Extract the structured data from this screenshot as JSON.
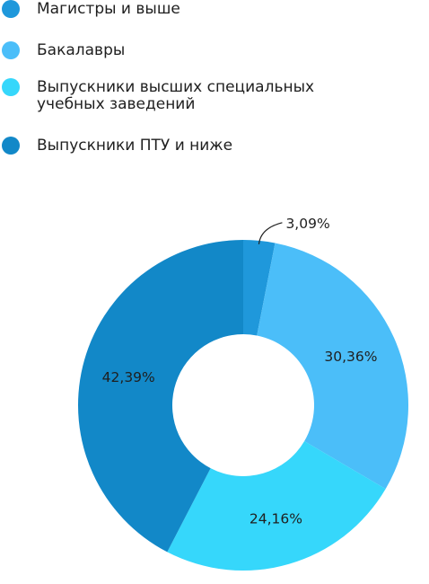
{
  "chart_data": {
    "type": "pie",
    "donut": true,
    "legend_position": "top-left",
    "categories": [
      "Магистры и выше",
      "Бакалавры",
      "Выпускники высших специальных учебных заведений",
      "Выпускники ПТУ и ниже"
    ],
    "legend_lines": [
      [
        "Магистры и выше"
      ],
      [
        "Бакалавры"
      ],
      [
        "Выпускники высших специальных",
        "учебных заведений"
      ],
      [
        "Выпускники ПТУ и ниже"
      ]
    ],
    "values": [
      3.09,
      30.36,
      24.16,
      42.39
    ],
    "value_labels": [
      "3,09%",
      "30,36%",
      "24,16%",
      "42,39%"
    ],
    "colors": [
      "#1f98db",
      "#4bbef9",
      "#36d7fb",
      "#1288c8"
    ]
  }
}
